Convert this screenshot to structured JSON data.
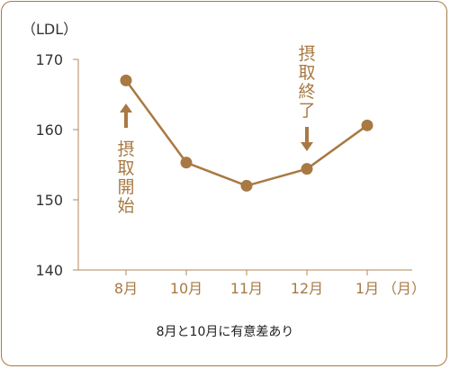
{
  "colors": {
    "accent": "#a87942",
    "frame": "#a87942",
    "axis": "#b08a5a",
    "text": "#333333",
    "marker": "#a87942"
  },
  "chart_data": {
    "type": "line",
    "ylabel": "（LDL）",
    "xlabel": "（月）",
    "ylim": [
      140,
      170
    ],
    "yticks": [
      140,
      150,
      160,
      170
    ],
    "categories": [
      "8月",
      "10月",
      "11月",
      "12月",
      "1月"
    ],
    "values": [
      167,
      155.3,
      152,
      154.4,
      160.6
    ],
    "annotations": [
      {
        "text": "摂取開始",
        "at": "8月",
        "arrow": "up"
      },
      {
        "text": "摂取終了",
        "at": "12月",
        "arrow": "down"
      }
    ],
    "caption": "8月と10月に有意差あり",
    "grid": false,
    "legend": "none"
  }
}
